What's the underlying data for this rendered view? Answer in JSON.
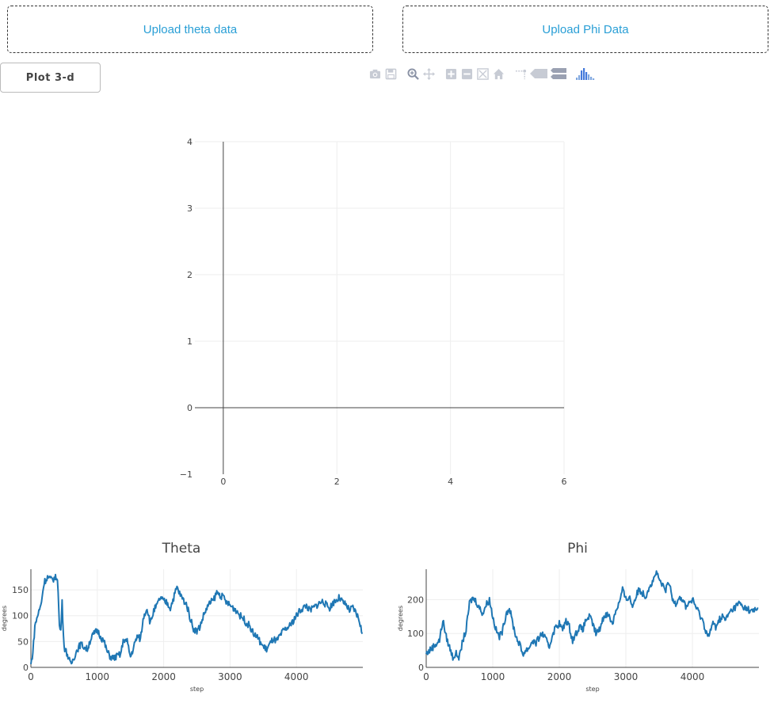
{
  "upload_theta": "Upload theta data",
  "upload_phi": "Upload Phi Data",
  "plot_button": "Plot 3-d",
  "modebar": [
    "camera-icon",
    "save-icon",
    "zoom-icon",
    "pan-icon",
    "zoom-in-icon",
    "zoom-out-icon",
    "autoscale-icon",
    "reset-axes-icon",
    "spike-lines-icon",
    "hover-closest-icon",
    "hover-compare-icon",
    "plotly-logo-icon"
  ],
  "chart_data": [
    {
      "type": "line",
      "title": "",
      "xlabel": "",
      "ylabel": "",
      "xlim": [
        -0.5,
        6
      ],
      "ylim": [
        -1,
        4
      ],
      "xticks": [
        "0",
        "2",
        "4",
        "6"
      ],
      "yticks": [
        "−1",
        "0",
        "1",
        "2",
        "3",
        "4"
      ],
      "grid": true,
      "series": []
    },
    {
      "type": "line",
      "title": "Theta",
      "xlabel": "step",
      "ylabel": "degrees",
      "xlim": [
        0,
        5000
      ],
      "ylim": [
        0,
        190
      ],
      "xticks": [
        "0",
        "1000",
        "2000",
        "3000",
        "4000"
      ],
      "yticks": [
        "0",
        "50",
        "100",
        "150"
      ],
      "grid": true,
      "color": "#1f77b4",
      "series": [
        {
          "x": [
            0,
            30,
            60,
            100,
            150,
            200,
            250,
            300,
            350,
            400,
            430,
            450,
            470,
            500,
            550,
            600,
            650,
            700,
            750,
            800,
            850,
            900,
            950,
            1000,
            1050,
            1100,
            1150,
            1200,
            1250,
            1300,
            1350,
            1400,
            1450,
            1500,
            1550,
            1600,
            1650,
            1700,
            1750,
            1800,
            1850,
            1900,
            1950,
            2000,
            2050,
            2100,
            2150,
            2200,
            2250,
            2300,
            2350,
            2400,
            2450,
            2500,
            2550,
            2600,
            2650,
            2700,
            2750,
            2800,
            2850,
            2900,
            2950,
            3000,
            3050,
            3100,
            3150,
            3200,
            3250,
            3300,
            3350,
            3400,
            3450,
            3500,
            3550,
            3600,
            3650,
            3700,
            3750,
            3800,
            3850,
            3900,
            3950,
            4000,
            4050,
            4100,
            4150,
            4200,
            4250,
            4300,
            4350,
            4400,
            4450,
            4500,
            4550,
            4600,
            4650,
            4700,
            4750,
            4800,
            4850,
            4900,
            4950,
            4990
          ],
          "y": [
            5,
            30,
            80,
            100,
            120,
            165,
            175,
            170,
            172,
            175,
            80,
            70,
            125,
            40,
            25,
            5,
            20,
            35,
            45,
            40,
            35,
            55,
            65,
            72,
            60,
            50,
            30,
            20,
            18,
            22,
            25,
            55,
            50,
            20,
            40,
            60,
            55,
            100,
            115,
            85,
            110,
            120,
            135,
            128,
            125,
            115,
            135,
            155,
            140,
            130,
            120,
            95,
            75,
            70,
            80,
            100,
            115,
            125,
            130,
            145,
            140,
            135,
            125,
            120,
            115,
            110,
            100,
            95,
            85,
            80,
            65,
            60,
            50,
            40,
            35,
            45,
            55,
            50,
            60,
            70,
            75,
            80,
            90,
            100,
            110,
            115,
            120,
            110,
            115,
            120,
            125,
            128,
            120,
            115,
            125,
            130,
            135,
            125,
            120,
            110,
            115,
            105,
            90,
            65
          ]
        }
      ]
    },
    {
      "type": "line",
      "title": "Phi",
      "xlabel": "step",
      "ylabel": "degrees",
      "xlim": [
        0,
        5000
      ],
      "ylim": [
        0,
        290
      ],
      "xticks": [
        "0",
        "1000",
        "2000",
        "3000",
        "4000"
      ],
      "yticks": [
        "0",
        "100",
        "200"
      ],
      "grid": true,
      "color": "#1f77b4",
      "series": [
        {
          "x": [
            0,
            50,
            100,
            150,
            200,
            250,
            300,
            350,
            400,
            450,
            500,
            550,
            600,
            650,
            700,
            750,
            800,
            850,
            900,
            950,
            1000,
            1050,
            1100,
            1150,
            1200,
            1250,
            1300,
            1350,
            1400,
            1450,
            1500,
            1550,
            1600,
            1650,
            1700,
            1750,
            1800,
            1850,
            1900,
            1950,
            2000,
            2050,
            2100,
            2150,
            2200,
            2250,
            2300,
            2350,
            2400,
            2450,
            2500,
            2550,
            2600,
            2650,
            2700,
            2750,
            2800,
            2850,
            2900,
            2950,
            3000,
            3050,
            3100,
            3150,
            3200,
            3250,
            3300,
            3350,
            3400,
            3450,
            3500,
            3550,
            3600,
            3650,
            3700,
            3750,
            3800,
            3850,
            3900,
            3950,
            4000,
            4050,
            4100,
            4150,
            4200,
            4250,
            4300,
            4350,
            4400,
            4450,
            4500,
            4550,
            4600,
            4650,
            4700,
            4750,
            4800,
            4850,
            4900,
            4950,
            4990
          ],
          "y": [
            40,
            50,
            60,
            70,
            80,
            140,
            90,
            60,
            30,
            40,
            30,
            80,
            110,
            190,
            205,
            195,
            175,
            160,
            185,
            200,
            150,
            110,
            90,
            110,
            160,
            175,
            130,
            90,
            70,
            40,
            50,
            60,
            80,
            70,
            90,
            100,
            80,
            60,
            100,
            120,
            130,
            110,
            140,
            120,
            80,
            100,
            120,
            110,
            140,
            150,
            130,
            100,
            110,
            140,
            160,
            150,
            130,
            170,
            190,
            230,
            200,
            210,
            180,
            210,
            230,
            220,
            210,
            240,
            250,
            280,
            260,
            240,
            230,
            250,
            200,
            190,
            210,
            200,
            180,
            190,
            200,
            180,
            160,
            140,
            110,
            90,
            130,
            120,
            140,
            150,
            140,
            160,
            170,
            180,
            190,
            180,
            175,
            170,
            165,
            170,
            175
          ]
        }
      ]
    }
  ]
}
